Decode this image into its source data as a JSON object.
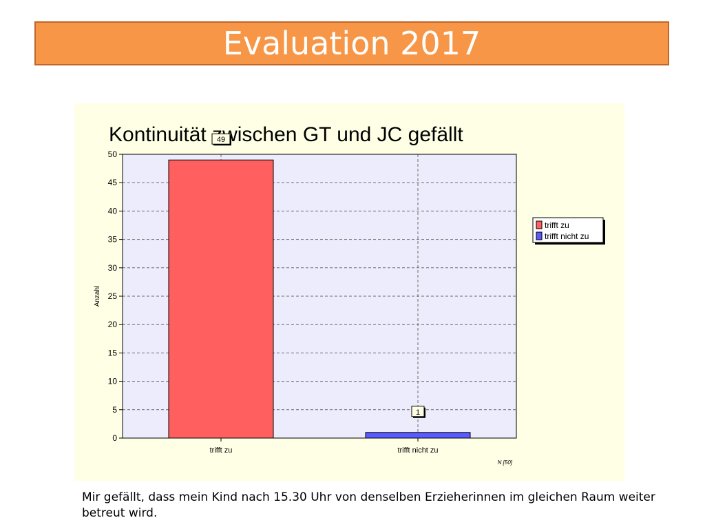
{
  "slide": {
    "title": "Evaluation 2017",
    "caption": "Mir gefällt, dass mein Kind nach 15.30 Uhr von denselben Erzieherinnen im gleichen Raum weiter betreut wird."
  },
  "colors": {
    "banner": "#f79646",
    "panel": "#ffffe6",
    "plot_area": "#ececfc"
  },
  "chart_data": {
    "type": "bar",
    "title": "Kontinuität zwischen GT und JC gefällt",
    "ylabel": "Anzahl",
    "xlabel": "",
    "ylim": [
      0,
      50
    ],
    "yticks": [
      0,
      5,
      10,
      15,
      20,
      25,
      30,
      35,
      40,
      45,
      50
    ],
    "categories": [
      "trifft zu",
      "trifft nicht zu"
    ],
    "values": [
      49,
      1
    ],
    "bar_colors": [
      "#ff5f5f",
      "#5a5aff"
    ],
    "data_labels": [
      "49",
      "1"
    ],
    "grid": true,
    "legend": {
      "placement": "right",
      "entries": [
        {
          "label": "trifft zu",
          "color": "#ff5f5f"
        },
        {
          "label": "trifft nicht zu",
          "color": "#5a5aff"
        }
      ]
    },
    "footnote": "N [50]"
  }
}
